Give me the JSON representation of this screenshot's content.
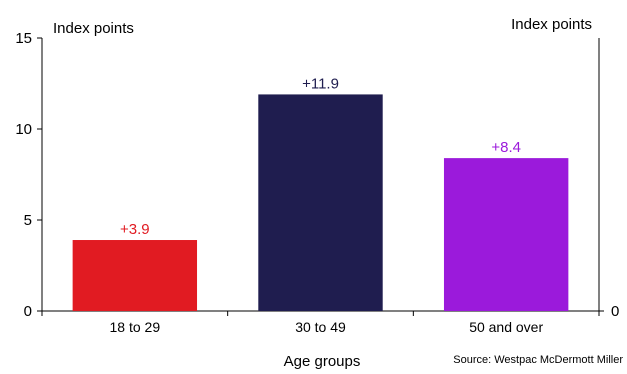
{
  "chart_data": {
    "type": "bar",
    "categories": [
      "18 to 29",
      "30 to 49",
      "50 and over"
    ],
    "values": [
      3.9,
      11.9,
      8.4
    ],
    "data_labels": [
      "+3.9",
      "+11.9",
      "+8.4"
    ],
    "bar_colors": [
      "#e11b22",
      "#1f1d4f",
      "#9b1adb"
    ],
    "ylabel_left": "Index points",
    "ylabel_right": "Index points",
    "xlabel": "Age groups",
    "ylim": [
      0,
      15
    ],
    "yticks_left": [
      0,
      5,
      10,
      15
    ],
    "yticks_right": [
      0
    ],
    "grid": false,
    "source": "Source: Westpac McDermott Miller"
  }
}
